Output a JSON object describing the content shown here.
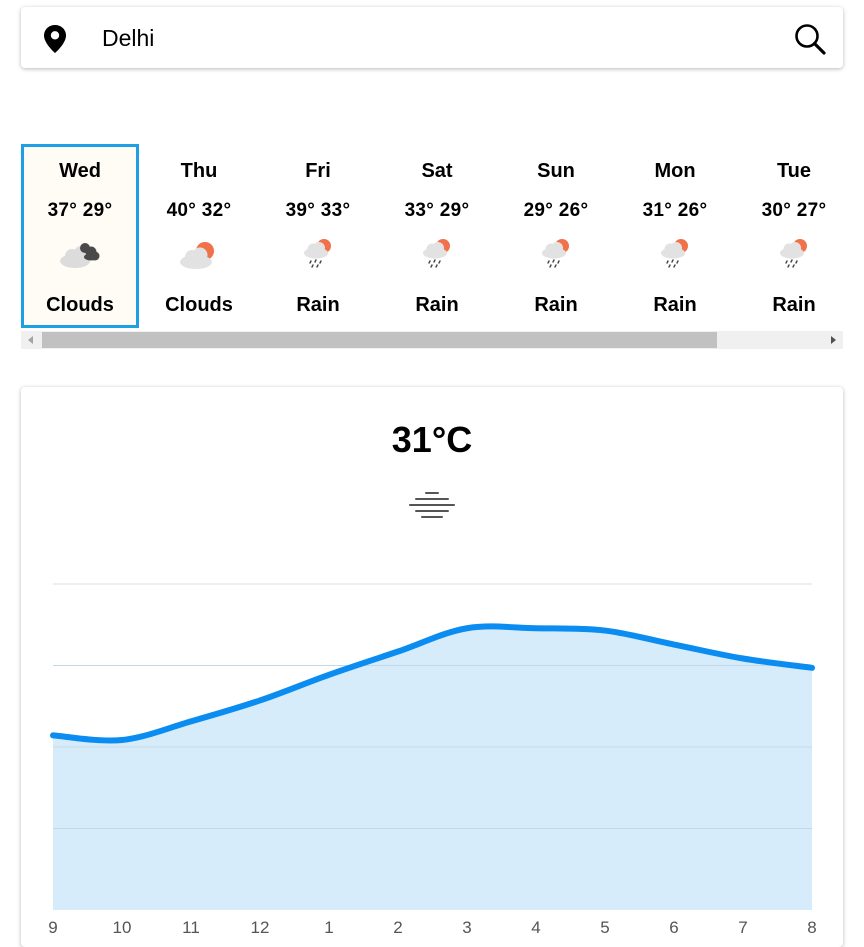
{
  "search": {
    "value": "Delhi",
    "placeholder": ""
  },
  "forecast": [
    {
      "day": "Wed",
      "high": "37°",
      "low": "29°",
      "condition": "Clouds",
      "icon": "dark-clouds-icon",
      "selected": true
    },
    {
      "day": "Thu",
      "high": "40°",
      "low": "32°",
      "condition": "Clouds",
      "icon": "sun-behind-cloud-icon"
    },
    {
      "day": "Fri",
      "high": "39°",
      "low": "33°",
      "condition": "Rain",
      "icon": "rain-sun-cloud-icon"
    },
    {
      "day": "Sat",
      "high": "33°",
      "low": "29°",
      "condition": "Rain",
      "icon": "rain-sun-cloud-icon"
    },
    {
      "day": "Sun",
      "high": "29°",
      "low": "26°",
      "condition": "Rain",
      "icon": "rain-sun-cloud-icon"
    },
    {
      "day": "Mon",
      "high": "31°",
      "low": "26°",
      "condition": "Rain",
      "icon": "rain-sun-cloud-icon"
    },
    {
      "day": "Tue",
      "high": "30°",
      "low": "27°",
      "condition": "Rain",
      "icon": "rain-sun-cloud-icon"
    }
  ],
  "detail": {
    "temperature": "31°C",
    "icon": "haze-icon"
  },
  "colors": {
    "accent": "#1ea0e6",
    "line": "#0a8cf0",
    "fill": "#d6ecfb",
    "sun": "#f0714a"
  },
  "chart_data": {
    "type": "area",
    "x": [
      "9",
      "10",
      "11",
      "12",
      "1",
      "2",
      "3",
      "4",
      "5",
      "6",
      "7",
      "8"
    ],
    "values": [
      29.5,
      29.3,
      30.1,
      31.0,
      32.1,
      33.1,
      34.1,
      34.1,
      34.0,
      33.4,
      32.8,
      32.4
    ],
    "ylim": [
      22,
      36
    ],
    "grid": true,
    "title": "",
    "xlabel": "",
    "ylabel": ""
  }
}
